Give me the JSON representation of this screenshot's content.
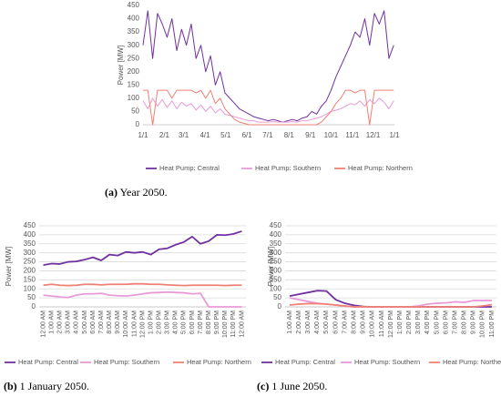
{
  "chart_data": [
    {
      "type": "line",
      "caption_label": "(a)",
      "caption": "Year 2050.",
      "y_label": "Power [MW]",
      "x": [
        0,
        7,
        14,
        21,
        28,
        35,
        42,
        49,
        56,
        63,
        70,
        77,
        84,
        91,
        98,
        105,
        112,
        119,
        126,
        133,
        140,
        147,
        154,
        161,
        168,
        175,
        182,
        189,
        196,
        203,
        210,
        217,
        224,
        231,
        238,
        245,
        252,
        259,
        266,
        273,
        280,
        287,
        294,
        301,
        308,
        315,
        322,
        329,
        336,
        343,
        350,
        357,
        364
      ],
      "xlim": [
        0,
        365
      ],
      "xticks": [
        {
          "value": 0,
          "label": "1/1"
        },
        {
          "value": 31,
          "label": "2/1"
        },
        {
          "value": 59,
          "label": "3/1"
        },
        {
          "value": 90,
          "label": "4/1"
        },
        {
          "value": 120,
          "label": "5/1"
        },
        {
          "value": 151,
          "label": "6/1"
        },
        {
          "value": 181,
          "label": "7/1"
        },
        {
          "value": 212,
          "label": "8/1"
        },
        {
          "value": 243,
          "label": "9/1"
        },
        {
          "value": 273,
          "label": "10/1"
        },
        {
          "value": 304,
          "label": "11/1"
        },
        {
          "value": 334,
          "label": "12/1"
        },
        {
          "value": 365,
          "label": "1/1"
        }
      ],
      "ylim": [
        0,
        450
      ],
      "yticks": [
        0,
        50,
        100,
        150,
        200,
        250,
        300,
        350,
        400,
        450
      ],
      "grid": false,
      "series": [
        {
          "name": "Heat Pump: Central",
          "color": "#7030a0",
          "values": [
            300,
            430,
            250,
            420,
            380,
            330,
            400,
            280,
            360,
            300,
            380,
            250,
            300,
            200,
            260,
            150,
            200,
            120,
            100,
            80,
            60,
            50,
            40,
            30,
            25,
            20,
            15,
            20,
            15,
            10,
            15,
            20,
            15,
            25,
            30,
            50,
            40,
            70,
            90,
            130,
            180,
            220,
            260,
            300,
            350,
            330,
            400,
            300,
            420,
            380,
            430,
            250,
            300
          ]
        },
        {
          "name": "Heat Pump: Southern",
          "color": "#e99ad8",
          "values": [
            90,
            60,
            100,
            70,
            95,
            65,
            90,
            60,
            85,
            70,
            80,
            55,
            75,
            50,
            70,
            45,
            60,
            40,
            35,
            30,
            25,
            20,
            15,
            15,
            10,
            10,
            10,
            12,
            10,
            10,
            10,
            12,
            10,
            15,
            15,
            20,
            25,
            30,
            40,
            50,
            55,
            60,
            70,
            80,
            75,
            90,
            70,
            95,
            80,
            100,
            85,
            60,
            90
          ]
        },
        {
          "name": "Heat Pump: Northern",
          "color": "#f08075",
          "values": [
            130,
            130,
            0,
            130,
            130,
            130,
            100,
            130,
            130,
            130,
            130,
            120,
            130,
            100,
            130,
            80,
            100,
            60,
            40,
            20,
            10,
            5,
            0,
            0,
            0,
            0,
            0,
            0,
            0,
            0,
            0,
            0,
            0,
            0,
            0,
            0,
            0,
            10,
            30,
            50,
            80,
            100,
            130,
            130,
            120,
            130,
            130,
            0,
            130,
            130,
            130,
            130,
            130
          ]
        }
      ]
    },
    {
      "type": "line",
      "caption_label": "(b)",
      "caption": "1 January 2050.",
      "y_label": "Power [MW]",
      "categories": [
        "12:00 AM",
        "1:00 AM",
        "2:00 AM",
        "3:00 AM",
        "4:00 AM",
        "5:00 AM",
        "6:00 AM",
        "7:00 AM",
        "8:00 AM",
        "9:00 AM",
        "10:00 AM",
        "11:00 AM",
        "12:00 PM",
        "1:00 PM",
        "2:00 PM",
        "3:00 PM",
        "4:00 PM",
        "5:00 PM",
        "6:00 PM",
        "7:00 PM",
        "8:00 PM",
        "9:00 PM",
        "10:00 PM",
        "11:00 PM",
        "12:00 AM"
      ],
      "ylim": [
        0,
        450
      ],
      "yticks": [
        0,
        50,
        100,
        150,
        200,
        250,
        300,
        350,
        400,
        450
      ],
      "grid": true,
      "series": [
        {
          "name": "Heat Pump: Central",
          "color": "#7030a0",
          "values": [
            232,
            240,
            238,
            250,
            252,
            262,
            275,
            258,
            290,
            285,
            305,
            300,
            305,
            290,
            320,
            325,
            345,
            360,
            390,
            350,
            365,
            400,
            398,
            405,
            420
          ]
        },
        {
          "name": "Heat Pump: Southern",
          "color": "#e99ad8",
          "values": [
            65,
            60,
            55,
            52,
            65,
            72,
            72,
            75,
            65,
            62,
            60,
            65,
            72,
            78,
            80,
            82,
            80,
            78,
            72,
            75,
            0,
            0,
            0,
            0,
            0
          ]
        },
        {
          "name": "Heat Pump: Northern",
          "color": "#f08075",
          "values": [
            120,
            125,
            120,
            118,
            120,
            125,
            125,
            122,
            125,
            125,
            125,
            128,
            128,
            125,
            125,
            122,
            120,
            118,
            120,
            120,
            120,
            120,
            118,
            120,
            120
          ]
        }
      ]
    },
    {
      "type": "line",
      "caption_label": "(c)",
      "caption": "1 June 2050.",
      "y_label": "Power [MW]",
      "categories": [
        "1:00 AM",
        "2:00 AM",
        "3:00 AM",
        "4:00 AM",
        "5:00 AM",
        "6:00 AM",
        "7:00 AM",
        "8:00 AM",
        "9:00 AM",
        "10:00 AM",
        "11:00 AM",
        "12:00 PM",
        "1:00 PM",
        "2:00 PM",
        "3:00 PM",
        "4:00 PM",
        "5:00 PM",
        "6:00 PM",
        "7:00 PM",
        "8:00 PM",
        "9:00 PM",
        "10:00 PM",
        "11:00 PM"
      ],
      "ylim": [
        0,
        450
      ],
      "yticks": [
        0,
        50,
        100,
        150,
        200,
        250,
        300,
        350,
        400,
        450
      ],
      "grid": true,
      "series": [
        {
          "name": "Heat Pump: Central",
          "color": "#7030a0",
          "values": [
            60,
            70,
            80,
            90,
            88,
            40,
            20,
            8,
            2,
            0,
            0,
            0,
            0,
            0,
            0,
            0,
            0,
            0,
            0,
            0,
            0,
            0,
            0
          ]
        },
        {
          "name": "Heat Pump: Southern",
          "color": "#e99ad8",
          "values": [
            50,
            40,
            30,
            20,
            15,
            10,
            5,
            0,
            0,
            0,
            0,
            0,
            0,
            0,
            5,
            15,
            20,
            22,
            28,
            25,
            35,
            35,
            35
          ]
        },
        {
          "name": "Heat Pump: Northern",
          "color": "#f08075",
          "values": [
            10,
            15,
            18,
            18,
            15,
            10,
            5,
            0,
            0,
            0,
            0,
            0,
            0,
            0,
            0,
            0,
            0,
            0,
            0,
            0,
            0,
            5,
            12
          ]
        }
      ]
    }
  ]
}
